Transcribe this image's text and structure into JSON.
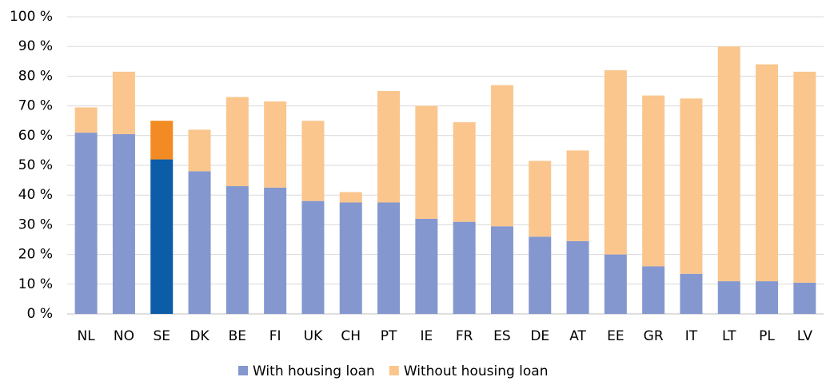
{
  "chart_data": {
    "type": "stacked_bar",
    "categories": [
      "NL",
      "NO",
      "SE",
      "DK",
      "BE",
      "FI",
      "UK",
      "CH",
      "PT",
      "IE",
      "FR",
      "ES",
      "DE",
      "AT",
      "EE",
      "GR",
      "IT",
      "LT",
      "PL",
      "LV"
    ],
    "series": [
      {
        "name": "With housing loan",
        "color": "#8497cf",
        "colors": [
          "#8497cf",
          "#8497cf",
          "#0d5ca8",
          "#8497cf",
          "#8497cf",
          "#8497cf",
          "#8497cf",
          "#8497cf",
          "#8497cf",
          "#8497cf",
          "#8497cf",
          "#8497cf",
          "#8497cf",
          "#8497cf",
          "#8497cf",
          "#8497cf",
          "#8497cf",
          "#8497cf",
          "#8497cf",
          "#8497cf"
        ],
        "values": [
          61,
          60.5,
          52,
          48,
          43,
          42.5,
          38,
          37.5,
          37.5,
          32,
          31,
          29.5,
          26,
          24.5,
          20,
          16,
          13.5,
          11,
          11,
          10.5
        ]
      },
      {
        "name": "Without housing loan",
        "color": "#fac68d",
        "colors": [
          "#fac68d",
          "#fac68d",
          "#f38b24",
          "#fac68d",
          "#fac68d",
          "#fac68d",
          "#fac68d",
          "#fac68d",
          "#fac68d",
          "#fac68d",
          "#fac68d",
          "#fac68d",
          "#fac68d",
          "#fac68d",
          "#fac68d",
          "#fac68d",
          "#fac68d",
          "#fac68d",
          "#fac68d",
          "#fac68d"
        ],
        "values": [
          8.5,
          21,
          13,
          14,
          30,
          29,
          27,
          3.5,
          37.5,
          38,
          33.5,
          47.5,
          25.5,
          30.5,
          62,
          57.5,
          59,
          79,
          73,
          71
        ]
      }
    ],
    "ylim": [
      0,
      100
    ],
    "yticks": [
      {
        "value": 0,
        "label": "0 %"
      },
      {
        "value": 10,
        "label": "10 %"
      },
      {
        "value": 20,
        "label": "20 %"
      },
      {
        "value": 30,
        "label": "30 %"
      },
      {
        "value": 40,
        "label": "40 %"
      },
      {
        "value": 50,
        "label": "50 %"
      },
      {
        "value": 60,
        "label": "60 %"
      },
      {
        "value": 70,
        "label": "70 %"
      },
      {
        "value": 80,
        "label": "80 %"
      },
      {
        "value": 90,
        "label": "90 %"
      },
      {
        "value": 100,
        "label": "100 %"
      }
    ],
    "grid": true,
    "legend": "bottom"
  }
}
